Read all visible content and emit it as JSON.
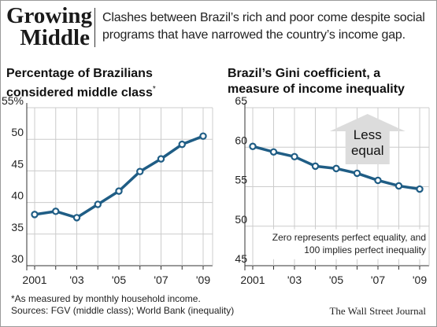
{
  "header": {
    "title": "Growing Middle",
    "subtitle": "Clashes between Brazil’s rich and poor come despite social programs that have narrowed the country’s income gap."
  },
  "colors": {
    "line": "#1f5d85",
    "grid": "#cccccc",
    "arrow": "#dcdcdc"
  },
  "chart_data": [
    {
      "type": "line",
      "title": "Percentage of Brazilians considered middle class",
      "title_marker": "*",
      "x": [
        2001,
        2002,
        2003,
        2004,
        2005,
        2006,
        2007,
        2008,
        2009
      ],
      "values": [
        38.1,
        38.6,
        37.6,
        39.7,
        41.8,
        44.9,
        46.9,
        49.2,
        50.5
      ],
      "ylim": [
        30,
        55
      ],
      "yticks": [
        "55%",
        "50",
        "45",
        "40",
        "35",
        "30"
      ],
      "xticks": [
        "2001",
        "'03",
        "'05",
        "'07",
        "'09"
      ],
      "grid": true
    },
    {
      "type": "line",
      "title": "Brazil’s Gini coefficient, a measure of income inequality",
      "x": [
        2001,
        2002,
        2003,
        2004,
        2005,
        2006,
        2007,
        2008,
        2009
      ],
      "values": [
        60.1,
        59.4,
        58.8,
        57.6,
        57.3,
        56.7,
        55.8,
        55.1,
        54.7
      ],
      "ylim": [
        45,
        65
      ],
      "yticks": [
        "65",
        "60",
        "55",
        "50",
        "45"
      ],
      "xticks": [
        "2001",
        "'03",
        "'05",
        "'07",
        "'09"
      ],
      "grid": true,
      "annotation_arrow": "Less equal",
      "note": "Zero represents perfect equality, and 100 implies perfect inequality"
    }
  ],
  "footnotes": {
    "star": "*As measured by monthly household income.",
    "sources": "Sources: FGV (middle class); World Bank (inequality)"
  },
  "credit": "The Wall Street Journal"
}
